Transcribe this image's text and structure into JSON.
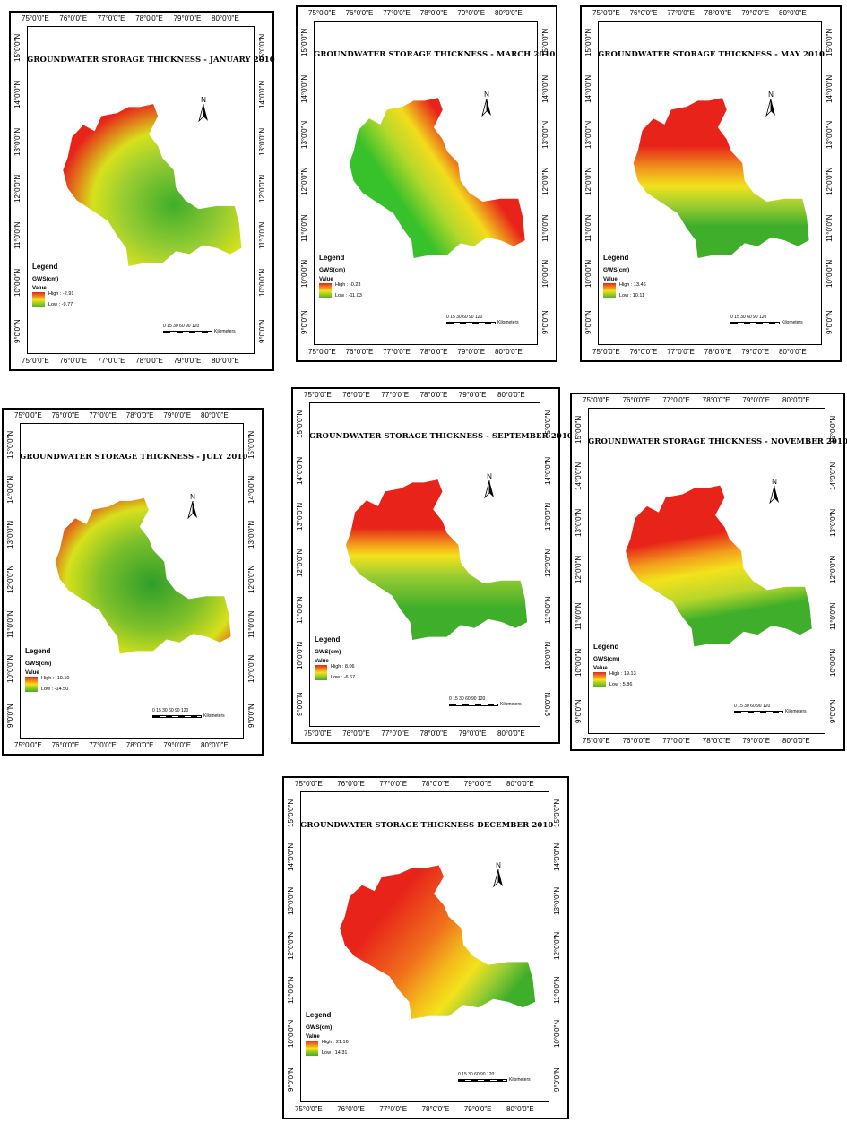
{
  "longitude_labels": [
    "75°0'0\"E",
    "76°0'0\"E",
    "77°0'0\"E",
    "78°0'0\"E",
    "79°0'0\"E",
    "80°0'0\"E"
  ],
  "latitude_labels": [
    "15°0'0\"N",
    "14°0'0\"N",
    "13°0'0\"N",
    "12°0'0\"N",
    "11°0'0\"N",
    "10°0'0\"N",
    "9°0'0\"N"
  ],
  "legend": {
    "title": "Legend",
    "unit": "GWS(cm)",
    "value_label": "Value"
  },
  "north": "N",
  "scale": {
    "ticks": "0  15 30      60      90     120",
    "unit": "Kilometers"
  },
  "colors": {
    "high": "#e8231a",
    "mid": "#f3e21c",
    "low": "#3fae2a"
  },
  "panels": [
    {
      "id": "jan",
      "title": "GROUNDWATER STORAGE THICKNESS - JANUARY 2010",
      "high": "High : -2.91",
      "low": "Low : -9.77"
    },
    {
      "id": "mar",
      "title": "GROUNDWATER STORAGE THICKNESS - MARCH 2010",
      "high": "High : -0.23",
      "low": "Low : -11.03"
    },
    {
      "id": "may",
      "title": "GROUNDWATER STORAGE THICKNESS - MAY 2010",
      "high": "High : 13.46",
      "low": "Low : 10.11"
    },
    {
      "id": "jul",
      "title": "GROUNDWATER STORAGE THICKNESS - JULY 2010",
      "high": "High : -10.10",
      "low": "Low : -14.50"
    },
    {
      "id": "sep",
      "title": "GROUNDWATER STORAGE THICKNESS - SEPTEMBER 2010",
      "high": "High : 8.06",
      "low": "Low : -6.67"
    },
    {
      "id": "nov",
      "title": "GROUNDWATER STORAGE THICKNESS - NOVEMBER 2010",
      "high": "High : 19.13",
      "low": "Low : 5.86"
    },
    {
      "id": "dec",
      "title": "GROUNDWATER STORAGE THICKNESS   DECEMBER 2010",
      "high": "High : 21.16",
      "low": "Low : 14.31"
    }
  ]
}
